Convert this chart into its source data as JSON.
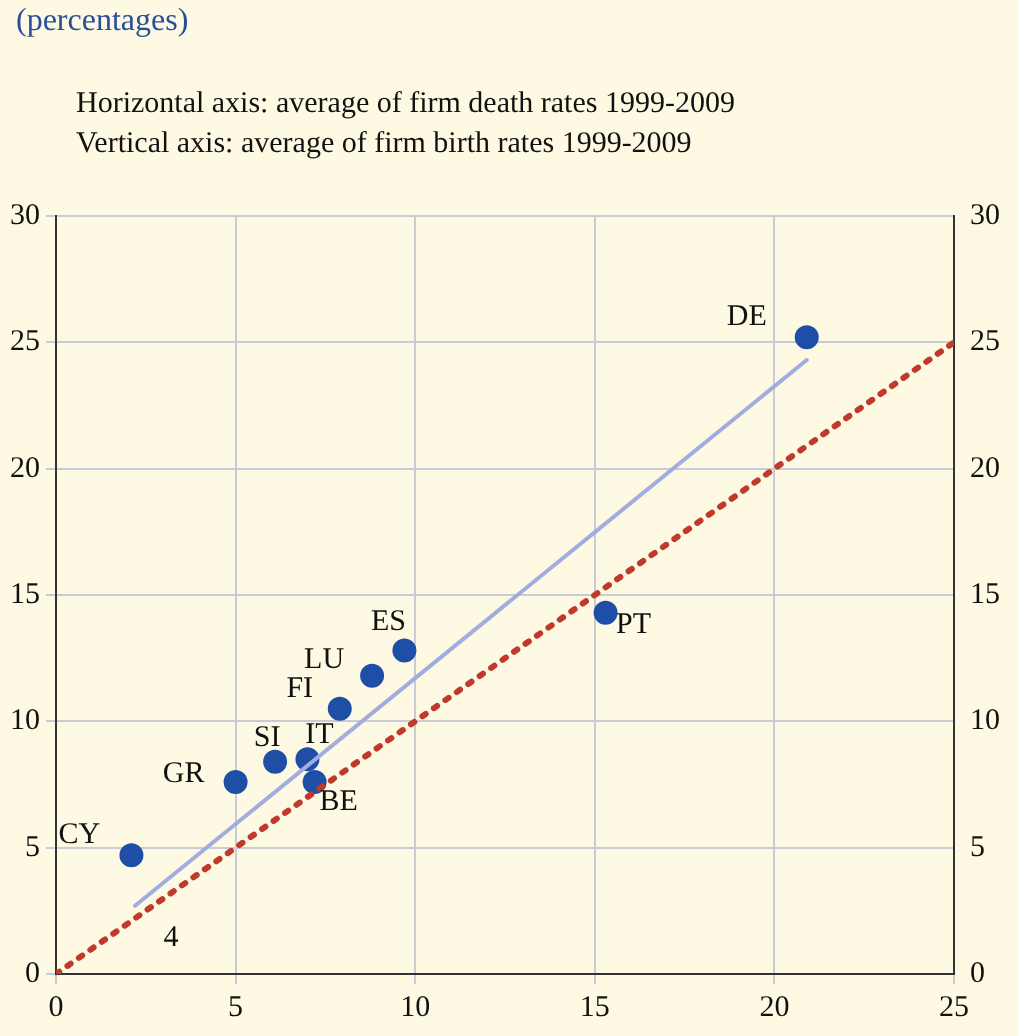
{
  "chart_data": {
    "type": "scatter",
    "title": "(percentages)",
    "subtitle": "Horizontal axis: average of firm death rates 1999-2009\nVertical axis: average of firm birth rates 1999-2009",
    "series": [
      {
        "type": "line",
        "color": "#a3acdf",
        "x": [
          2.2,
          20.9
        ],
        "values": [
          2.7,
          24.3
        ],
        "line_style": "solid",
        "marker": "none"
      },
      {
        "type": "line",
        "color": "#c0392b",
        "x": [
          0,
          25
        ],
        "values": [
          0,
          25
        ],
        "line_style": "dotted",
        "marker": "none"
      },
      {
        "color": "#1f4ea6",
        "marker": "circle",
        "x": [
          2.1,
          5.0,
          6.1,
          7.0,
          7.2,
          7.9,
          8.8,
          9.7,
          15.3,
          20.9
        ],
        "values": [
          4.7,
          7.6,
          8.4,
          8.5,
          7.6,
          10.5,
          11.8,
          12.8,
          14.3,
          25.2
        ],
        "value_labels": [
          "CY",
          "GR",
          "SI",
          "IT",
          "BE",
          "FI",
          "LU",
          "ES",
          "PT",
          "DE"
        ]
      }
    ],
    "xlim": [
      0,
      25
    ],
    "xticks": [
      0,
      5,
      10,
      15,
      20,
      25
    ],
    "ylim": [
      0,
      30
    ],
    "yticks": [
      0,
      5,
      10,
      15,
      20,
      25,
      30
    ],
    "y2lim": [
      0,
      30
    ],
    "y2ticks": [
      0,
      5,
      10,
      15,
      20,
      25,
      30
    ],
    "annotations": [
      "4"
    ],
    "grid": true,
    "legend": false
  }
}
